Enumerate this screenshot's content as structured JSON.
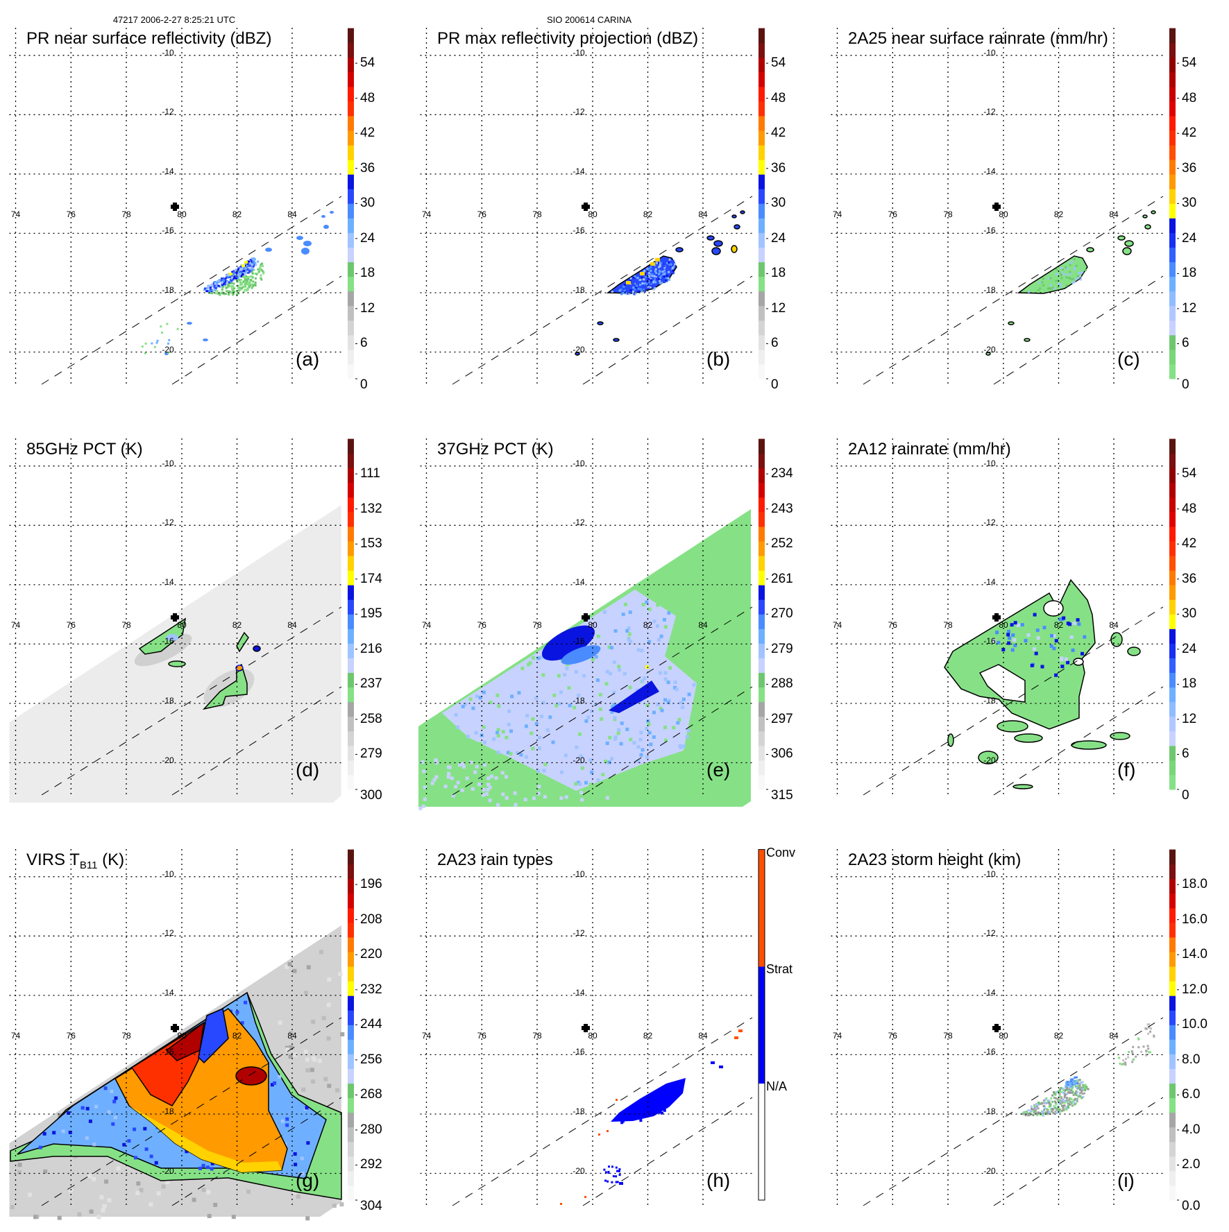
{
  "header": {
    "left": "47217 2006-2-27 8:25:21 UTC",
    "center": "SIO 200614 CARINA"
  },
  "axes": {
    "lon_ticks": [
      "74",
      "76",
      "78",
      "80",
      "82",
      "84"
    ],
    "lat_ticks": [
      "-10",
      "-12",
      "-14",
      "-16",
      "-18",
      "-20"
    ]
  },
  "colormaps": {
    "standard": [
      "#f8f8f8",
      "#efefef",
      "#e3e3e3",
      "#d4d4d4",
      "#c0c0c0",
      "#a6a6a6",
      "#86e186",
      "#6ec76e",
      "#c8d2ff",
      "#a0c4ff",
      "#6eb0ff",
      "#4a8cff",
      "#2848ff",
      "#0a14e0",
      "#ffff00",
      "#ffd200",
      "#ff9a00",
      "#ff7a00",
      "#ff3000",
      "#ff1a00",
      "#d40000",
      "#b00000",
      "#7a1010",
      "#5a1410"
    ],
    "rain": [
      "#86e186",
      "#79d679",
      "#6ec76e",
      "#c8d2ff",
      "#b0c8ff",
      "#90bcff",
      "#6eb0ff",
      "#4a8cff",
      "#3060ff",
      "#1830f0",
      "#0a14e0",
      "#ffff00",
      "#ffd200",
      "#ff9a00",
      "#ff7a00",
      "#ff5000",
      "#ff3000",
      "#ff1a00",
      "#e00000",
      "#c80000",
      "#b00000",
      "#900000",
      "#7a1010",
      "#5a1410"
    ],
    "types": [
      "#ffffff",
      "#0000ff",
      "#ff5000"
    ]
  },
  "panels": [
    {
      "title": "PR near surface reflectivity (dBZ)",
      "label": "(a)",
      "colormap": "standard",
      "cbar_ticks": [
        "54",
        "48",
        "42",
        "36",
        "30",
        "24",
        "18",
        "12",
        "6",
        "0"
      ]
    },
    {
      "title": "PR max reflectivity projection (dBZ)",
      "label": "(b)",
      "colormap": "standard",
      "cbar_ticks": [
        "54",
        "48",
        "42",
        "36",
        "30",
        "24",
        "18",
        "12",
        "6",
        "0"
      ]
    },
    {
      "title": "2A25 near surface rainrate (mm/hr)",
      "label": "(c)",
      "colormap": "rain",
      "cbar_ticks": [
        "54",
        "48",
        "42",
        "36",
        "30",
        "24",
        "18",
        "12",
        "6",
        "0"
      ]
    },
    {
      "title": "85GHz PCT (K)",
      "label": "(d)",
      "colormap": "standard",
      "cbar_ticks": [
        "111",
        "132",
        "153",
        "174",
        "195",
        "216",
        "237",
        "258",
        "279",
        "300"
      ]
    },
    {
      "title": "37GHz PCT (K)",
      "label": "(e)",
      "colormap": "standard",
      "cbar_ticks": [
        "234",
        "243",
        "252",
        "261",
        "270",
        "279",
        "288",
        "297",
        "306",
        "315"
      ]
    },
    {
      "title": "2A12 rainrate (mm/hr)",
      "label": "(f)",
      "colormap": "rain",
      "cbar_ticks": [
        "54",
        "48",
        "42",
        "36",
        "30",
        "24",
        "18",
        "12",
        "6",
        "0"
      ]
    },
    {
      "title": "VIRS T",
      "title_sub": "B11",
      "title_suffix": " (K)",
      "label": "(g)",
      "colormap": "standard",
      "cbar_ticks": [
        "196",
        "208",
        "220",
        "232",
        "244",
        "256",
        "268",
        "280",
        "292",
        "304"
      ]
    },
    {
      "title": "2A23 rain types",
      "label": "(h)",
      "colormap": "types",
      "cbar_ticks": [
        "Conv",
        "Strat",
        "N/A"
      ]
    },
    {
      "title": "2A23 storm height (km)",
      "label": "(i)",
      "colormap": "standard",
      "cbar_ticks": [
        "18.0",
        "16.0",
        "14.0",
        "12.0",
        "10.0",
        "8.0",
        "6.0",
        "4.0",
        "2.0",
        "0.0"
      ]
    }
  ]
}
